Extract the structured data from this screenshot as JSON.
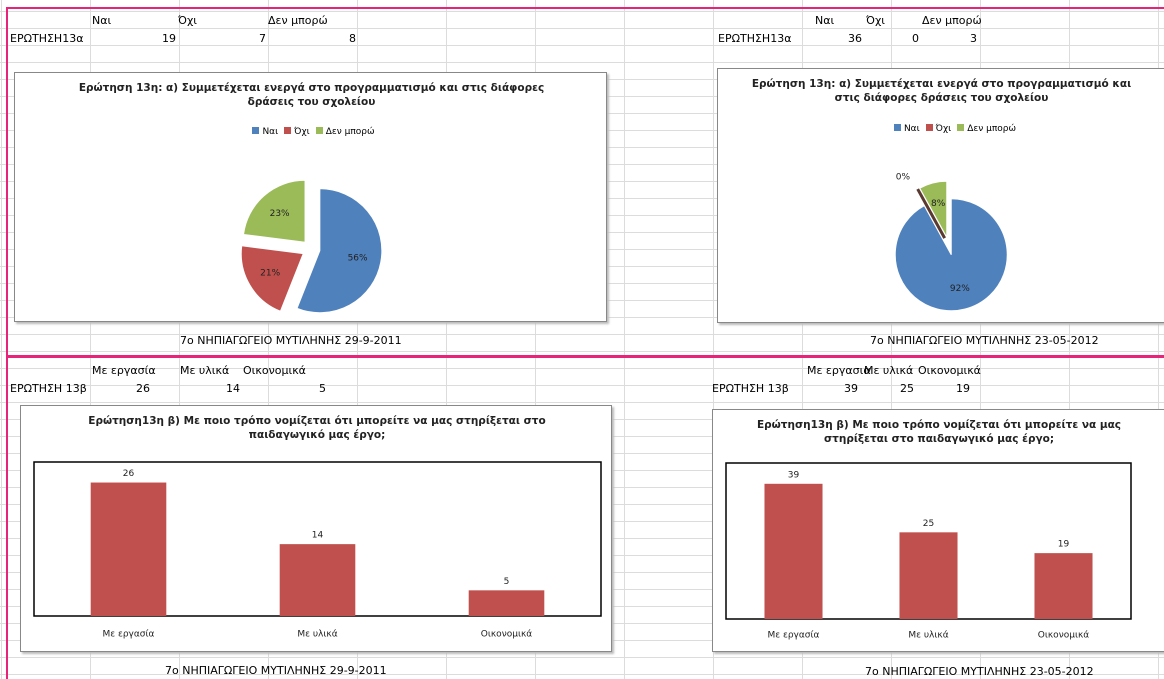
{
  "tables": [
    {
      "headers": [
        "Ναι",
        "Όχι",
        "Δεν μπορώ"
      ],
      "row_label": "ΕΡΩΤΗΣΗ13α",
      "values": [
        19,
        7,
        8
      ],
      "footer": "7ο ΝΗΠΙΑΓΩΓΕΙΟ ΜΥΤΙΛΗΝΗΣ 29-9-2011"
    },
    {
      "headers": [
        "Ναι",
        "Όχι",
        "Δεν μπορώ"
      ],
      "row_label": "ΕΡΩΤΗΣΗ13α",
      "values": [
        36,
        0,
        3
      ],
      "footer": "7ο ΝΗΠΙΑΓΩΓΕΙΟ ΜΥΤΙΛΗΝΗΣ 23-05-2012"
    },
    {
      "headers": [
        "Με εργασία",
        "Με υλικά",
        "Οικονομικά"
      ],
      "row_label": "ΕΡΩΤΗΣΗ 13β",
      "values": [
        26,
        14,
        5
      ],
      "footer": "7ο ΝΗΠΙΑΓΩΓΕΙΟ ΜΥΤΙΛΗΝΗΣ 29-9-2011"
    },
    {
      "headers": [
        "Με εργασια",
        "Με υλικά",
        "Οικονομικά"
      ],
      "row_label": "ΕΡΩΤΗΣΗ 13β",
      "values": [
        39,
        25,
        19
      ],
      "footer": "7ο ΝΗΠΙΑΓΩΓΕΙΟ ΜΥΤΙΛΗΝΗΣ 23-05-2012"
    }
  ],
  "chart_data": [
    {
      "type": "pie",
      "title": "Ερώτηση 13η: α) Συμμετέχεται ενεργά στο προγραμματισμό και στις διάφορες δράσεις του σχολείου",
      "categories": [
        "Ναι",
        "Όχι",
        "Δεν μπορώ"
      ],
      "values": [
        56,
        21,
        23
      ],
      "value_labels": [
        "56%",
        "21%",
        "23%"
      ],
      "colors": [
        "#4f81bd",
        "#c0504d",
        "#9bbb59"
      ],
      "legend": "top"
    },
    {
      "type": "pie",
      "title": "Ερώτηση 13η: α) Συμμετέχεται ενεργά στο προγραμματισμό και στις διάφορες δράσεις του σχολείου",
      "categories": [
        "Ναι",
        "Όχι",
        "Δεν μπορώ"
      ],
      "values": [
        92,
        0,
        8
      ],
      "value_labels": [
        "92%",
        "0%",
        "8%"
      ],
      "colors": [
        "#4f81bd",
        "#c0504d",
        "#9bbb59"
      ],
      "legend": "top"
    },
    {
      "type": "bar",
      "title": "Ερώτηση13η β) Με ποιο τρόπο νομίζεται ότι μπορείτε να μας στηρίξεται στο παιδαγωγικό μας έργο;",
      "categories": [
        "Με εργασία",
        "Με υλικά",
        "Οικονομικά"
      ],
      "values": [
        26,
        14,
        5
      ],
      "color": "#c0504d",
      "ylim": [
        0,
        30
      ]
    },
    {
      "type": "bar",
      "title": "Ερώτηση13η β) Με ποιο τρόπο νομίζεται ότι μπορείτε να μας στηρίξεται στο παιδαγωγικό μας έργο;",
      "categories": [
        "Με εργασία",
        "Με υλικά",
        "Οικονομικά"
      ],
      "values": [
        39,
        25,
        19
      ],
      "color": "#c0504d",
      "ylim": [
        0,
        45
      ]
    }
  ]
}
